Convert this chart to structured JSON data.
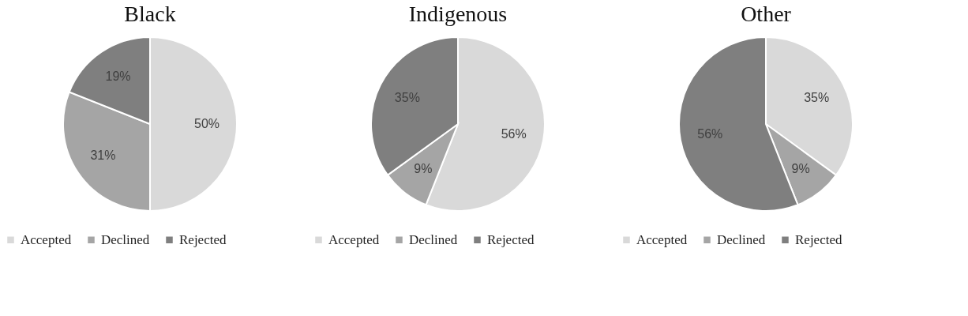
{
  "chart_data": [
    {
      "type": "pie",
      "title": "Black",
      "categories": [
        "Accepted",
        "Declined",
        "Rejected"
      ],
      "values": [
        50,
        31,
        19
      ],
      "value_labels": [
        "50%",
        "31%",
        "19%"
      ],
      "colors": [
        "#d9d9d9",
        "#a5a5a5",
        "#7f7f7f"
      ],
      "legend": "bottom"
    },
    {
      "type": "pie",
      "title": "Indigenous",
      "categories": [
        "Accepted",
        "Declined",
        "Rejected"
      ],
      "values": [
        56,
        9,
        35
      ],
      "value_labels": [
        "56%",
        "9%",
        "35%"
      ],
      "colors": [
        "#d9d9d9",
        "#a5a5a5",
        "#7f7f7f"
      ],
      "legend": "bottom"
    },
    {
      "type": "pie",
      "title": "Other",
      "categories": [
        "Accepted",
        "Declined",
        "Rejected"
      ],
      "values": [
        35,
        9,
        56
      ],
      "value_labels": [
        "35%",
        "9%",
        "56%"
      ],
      "colors": [
        "#d9d9d9",
        "#a5a5a5",
        "#7f7f7f"
      ],
      "legend": "bottom"
    }
  ]
}
